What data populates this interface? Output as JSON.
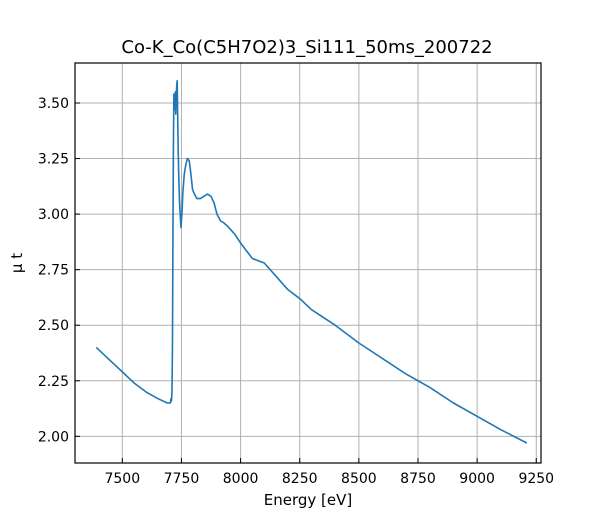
{
  "chart_data": {
    "type": "line",
    "title": "Co-K_Co(C5H7O2)3_Si111_50ms_200722",
    "xlabel": "Energy [eV]",
    "ylabel": "μ t",
    "xlim": [
      7300,
      9270
    ],
    "ylim": [
      1.88,
      3.68
    ],
    "x_ticks": [
      7500,
      7750,
      8000,
      8250,
      8500,
      8750,
      9000,
      9250
    ],
    "y_ticks": [
      2.0,
      2.25,
      2.5,
      2.75,
      3.0,
      3.25,
      3.5
    ],
    "x_tick_labels": [
      "7500",
      "7750",
      "8000",
      "8250",
      "8500",
      "8750",
      "9000",
      "9250"
    ],
    "y_tick_labels": [
      "2.00",
      "2.25",
      "2.50",
      "2.75",
      "3.00",
      "3.25",
      "3.50"
    ],
    "grid": true,
    "series": [
      {
        "color": "#1f77b4",
        "x": [
          7390,
          7450,
          7500,
          7550,
          7600,
          7650,
          7690,
          7703,
          7706,
          7708,
          7710,
          7712,
          7714,
          7716,
          7718,
          7720,
          7722,
          7724,
          7726,
          7728,
          7730,
          7732,
          7734,
          7736,
          7738,
          7742,
          7748,
          7752,
          7756,
          7762,
          7768,
          7775,
          7783,
          7790,
          7797,
          7805,
          7815,
          7830,
          7845,
          7860,
          7875,
          7888,
          7900,
          7915,
          7930,
          7950,
          7975,
          8000,
          8050,
          8100,
          8150,
          8200,
          8250,
          8300,
          8400,
          8500,
          8600,
          8700,
          8800,
          8900,
          9000,
          9100,
          9210
        ],
        "y": [
          2.4,
          2.34,
          2.29,
          2.24,
          2.2,
          2.17,
          2.15,
          2.15,
          2.17,
          2.16,
          2.2,
          2.4,
          2.9,
          3.3,
          3.54,
          3.52,
          3.47,
          3.55,
          3.45,
          3.53,
          3.58,
          3.6,
          3.45,
          3.3,
          3.2,
          3.05,
          2.94,
          3.0,
          3.1,
          3.18,
          3.22,
          3.25,
          3.24,
          3.18,
          3.11,
          3.09,
          3.07,
          3.07,
          3.08,
          3.09,
          3.08,
          3.05,
          3.0,
          2.97,
          2.96,
          2.94,
          2.91,
          2.87,
          2.8,
          2.78,
          2.72,
          2.66,
          2.62,
          2.57,
          2.5,
          2.42,
          2.35,
          2.28,
          2.22,
          2.15,
          2.09,
          2.03,
          1.97
        ]
      }
    ]
  }
}
